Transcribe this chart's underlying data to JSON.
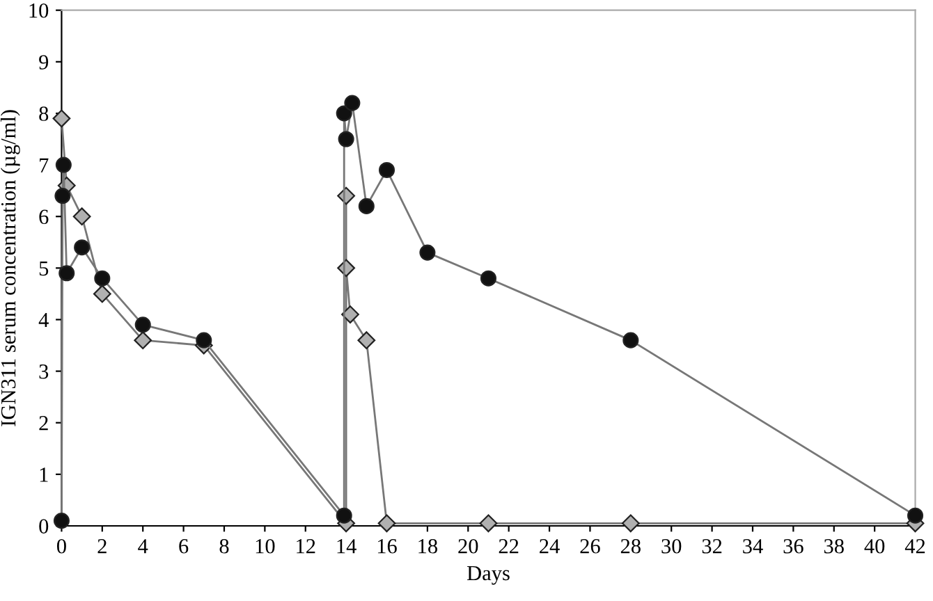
{
  "chart_data": {
    "type": "line",
    "xlabel": "Days",
    "ylabel": "IGN311 serum concentration (µg/ml)",
    "xlim": [
      0,
      42
    ],
    "xticks": [
      0,
      2,
      4,
      6,
      8,
      10,
      12,
      14,
      16,
      18,
      20,
      22,
      24,
      26,
      28,
      30,
      32,
      34,
      36,
      38,
      40,
      42
    ],
    "ylim": [
      0,
      10
    ],
    "yticks": [
      0,
      1,
      2,
      3,
      4,
      5,
      6,
      7,
      8,
      9,
      10
    ],
    "grid": false,
    "legend": false,
    "line_style": "solid",
    "series": [
      {
        "color": "#111111",
        "marker": "circle",
        "x": [
          0,
          0.05,
          0.1,
          0.25,
          1,
          2,
          4,
          7,
          13.9,
          13.9,
          14.0,
          14.3,
          15,
          16,
          18,
          21,
          28,
          42
        ],
        "values": [
          0.1,
          6.4,
          7.0,
          4.9,
          5.4,
          4.8,
          3.9,
          3.6,
          0.2,
          8.0,
          7.5,
          8.2,
          6.2,
          6.9,
          5.3,
          4.8,
          3.6,
          0.2
        ]
      },
      {
        "color": "#b0b0b0",
        "marker": "diamond",
        "x": [
          0,
          0.25,
          1,
          2,
          4,
          7,
          14,
          14,
          14,
          14.2,
          15,
          16,
          21,
          28,
          42
        ],
        "values": [
          7.9,
          6.6,
          6.0,
          4.5,
          3.6,
          3.5,
          0.05,
          6.4,
          5.0,
          4.1,
          3.6,
          0.05,
          0.05,
          0.05,
          0.05
        ]
      }
    ]
  }
}
